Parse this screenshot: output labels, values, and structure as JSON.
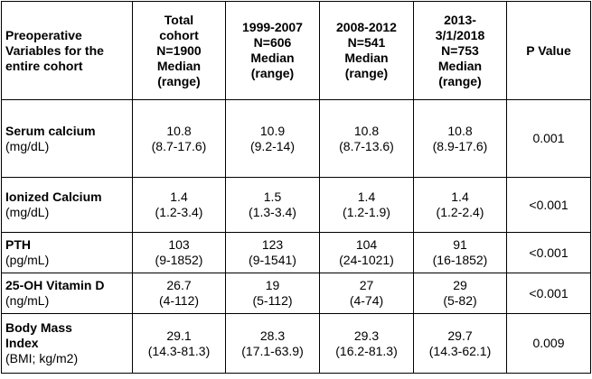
{
  "table": {
    "headers": [
      [
        "Preoperative",
        "Variables for the",
        "entire cohort"
      ],
      [
        "Total",
        "cohort",
        "N=1900",
        "Median",
        "(range)"
      ],
      [
        "1999-2007",
        "N=606",
        "Median",
        "(range)"
      ],
      [
        "2008-2012",
        "N=541",
        "Median",
        "(range)"
      ],
      [
        "2013-",
        "3/1/2018",
        "N=753",
        "Median",
        "(range)"
      ],
      [
        "P Value"
      ]
    ],
    "rows": [
      {
        "name": [
          "Serum calcium"
        ],
        "unit": "(mg/dL)",
        "total": {
          "median": "10.8",
          "range": "(8.7-17.6)"
        },
        "p1": {
          "median": "10.9",
          "range": "(9.2-14)"
        },
        "p2": {
          "median": "10.8",
          "range": "(8.7-13.6)"
        },
        "p3": {
          "median": "10.8",
          "range": "(8.9-17.6)"
        },
        "p_value": "0.001"
      },
      {
        "name": [
          "Ionized Calcium"
        ],
        "unit": "(mg/dL)",
        "total": {
          "median": "1.4",
          "range": "(1.2-3.4)"
        },
        "p1": {
          "median": "1.5",
          "range": "(1.3-3.4)"
        },
        "p2": {
          "median": "1.4",
          "range": "(1.2-1.9)"
        },
        "p3": {
          "median": "1.4",
          "range": "(1.2-2.4)"
        },
        "p_value": "<0.001"
      },
      {
        "name": [
          "PTH"
        ],
        "unit": "(pg/mL)",
        "total": {
          "median": "103",
          "range": "(9-1852)"
        },
        "p1": {
          "median": "123",
          "range": "(9-1541)"
        },
        "p2": {
          "median": "104",
          "range": "(24-1021)"
        },
        "p3": {
          "median": "91",
          "range": "(16-1852)"
        },
        "p_value": "<0.001"
      },
      {
        "name": [
          "25-OH Vitamin D"
        ],
        "unit": "(ng/mL)",
        "total": {
          "median": "26.7",
          "range": "(4-112)"
        },
        "p1": {
          "median": "19",
          "range": "(5-112)"
        },
        "p2": {
          "median": "27",
          "range": "(4-74)"
        },
        "p3": {
          "median": "29",
          "range": "(5-82)"
        },
        "p_value": "<0.001"
      },
      {
        "name": [
          "Body Mass",
          "Index"
        ],
        "unit": "(BMI; kg/m2)",
        "total": {
          "median": "29.1",
          "range": "(14.3-81.3)"
        },
        "p1": {
          "median": "28.3",
          "range": "(17.1-63.9)"
        },
        "p2": {
          "median": "29.3",
          "range": "(16.2-81.3)"
        },
        "p3": {
          "median": "29.7",
          "range": "(14.3-62.1)"
        },
        "p_value": "0.009"
      }
    ]
  }
}
